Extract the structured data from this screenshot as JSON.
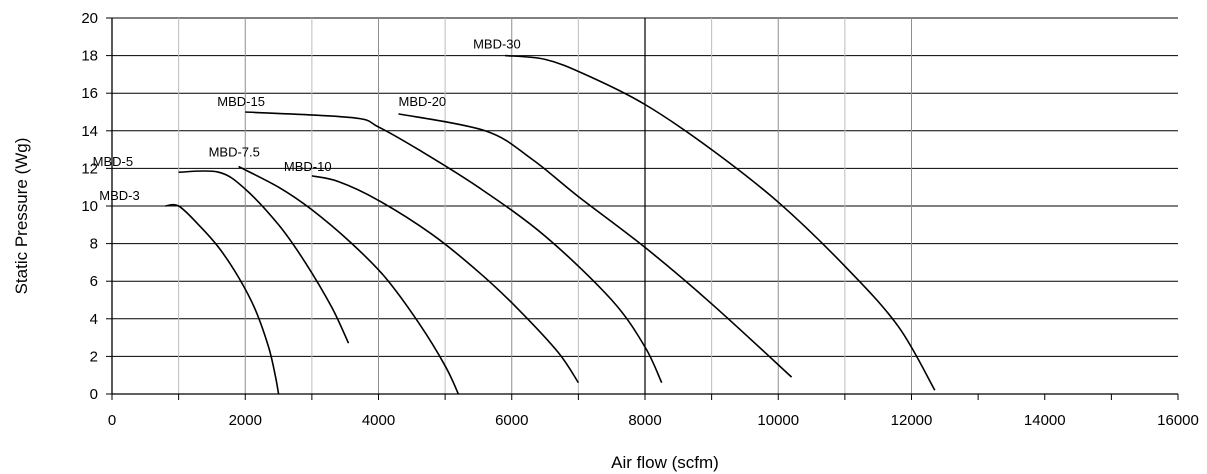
{
  "chart_data": {
    "type": "line",
    "title": "",
    "xlabel": "Air flow (scfm)",
    "ylabel": "Static Pressure (Wg)",
    "xlim": [
      0,
      16000
    ],
    "ylim": [
      0,
      20
    ],
    "x_ticks": [
      "0",
      "2000",
      "4000",
      "6000",
      "8000",
      "10000",
      "12000",
      "14000",
      "16000"
    ],
    "y_ticks": [
      "0",
      "2",
      "4",
      "6",
      "8",
      "10",
      "12",
      "14",
      "16",
      "18",
      "20"
    ],
    "grid": true,
    "legend": "none",
    "series": [
      {
        "name": "MBD-3",
        "x": [
          800,
          1000,
          1300,
          1600,
          1900,
          2150,
          2350,
          2450,
          2500
        ],
        "y": [
          10,
          10,
          9,
          7.8,
          6.2,
          4.5,
          2.5,
          1.0,
          0
        ]
      },
      {
        "name": "MBD-5",
        "x": [
          1000,
          1600,
          2000,
          2500,
          2900,
          3300,
          3550
        ],
        "y": [
          11.8,
          11.8,
          10.9,
          9.0,
          7.0,
          4.6,
          2.7
        ]
      },
      {
        "name": "MBD-7.5",
        "x": [
          1900,
          2500,
          3000,
          3600,
          4100,
          4600,
          5000,
          5200
        ],
        "y": [
          12.1,
          11.0,
          9.8,
          8.0,
          6.2,
          3.8,
          1.5,
          0
        ]
      },
      {
        "name": "MBD-10",
        "x": [
          3000,
          3400,
          4000,
          4800,
          5500,
          6100,
          6700,
          7000
        ],
        "y": [
          11.6,
          11.3,
          10.3,
          8.5,
          6.5,
          4.5,
          2.2,
          0.6
        ]
      },
      {
        "name": "MBD-15",
        "x": [
          2000,
          3600,
          4000,
          4600,
          5500,
          6500,
          7500,
          8000,
          8250
        ],
        "y": [
          15.0,
          14.7,
          14.2,
          13.0,
          11.0,
          8.4,
          5.0,
          2.5,
          0.6
        ]
      },
      {
        "name": "MBD-20",
        "x": [
          4300,
          5600,
          6300,
          7000,
          8000,
          9000,
          10200
        ],
        "y": [
          14.9,
          14.0,
          12.5,
          10.5,
          7.8,
          4.8,
          0.9
        ]
      },
      {
        "name": "MBD-30",
        "x": [
          5900,
          6500,
          7100,
          8000,
          9000,
          10000,
          11000,
          11800,
          12350
        ],
        "y": [
          18.0,
          17.8,
          17.0,
          15.4,
          13.0,
          10.2,
          6.8,
          3.6,
          0.2
        ]
      }
    ]
  }
}
